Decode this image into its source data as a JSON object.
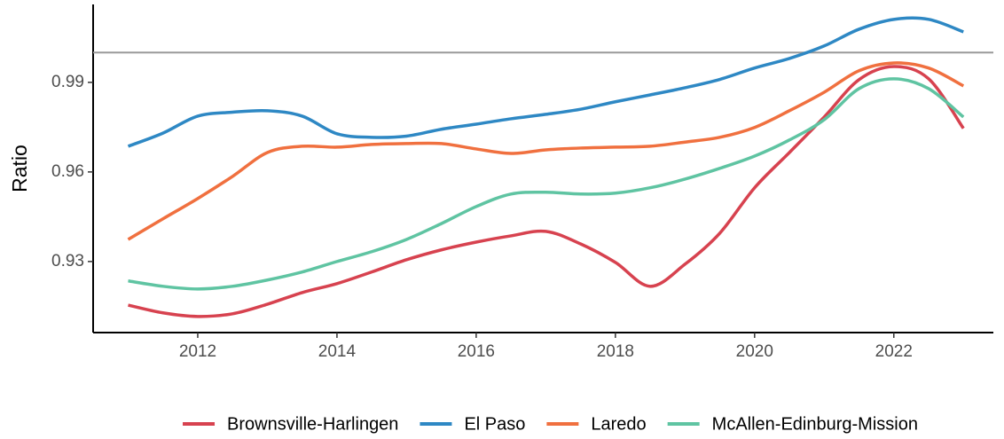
{
  "chart_data": {
    "type": "line",
    "y_label": "Ratio",
    "x": [
      2011,
      2011.5,
      2012,
      2012.5,
      2013,
      2013.5,
      2014,
      2014.5,
      2015,
      2015.5,
      2016,
      2016.5,
      2017,
      2017.5,
      2018,
      2018.5,
      2019,
      2019.5,
      2020,
      2020.5,
      2021,
      2021.5,
      2022,
      2022.5,
      2023
    ],
    "series": [
      {
        "name": "Brownsville-Harlingen",
        "color": "#d7424f",
        "values": [
          0.9154,
          0.9128,
          0.9116,
          0.9125,
          0.9157,
          0.9196,
          0.9226,
          0.9265,
          0.9306,
          0.9339,
          0.9365,
          0.9386,
          0.9401,
          0.9359,
          0.9297,
          0.9217,
          0.9291,
          0.9395,
          0.9547,
          0.9665,
          0.9784,
          0.9909,
          0.9953,
          0.9912,
          0.9746
        ]
      },
      {
        "name": "El Paso",
        "color": "#2e88c4",
        "values": [
          0.9686,
          0.973,
          0.9787,
          0.98,
          0.9805,
          0.9787,
          0.9728,
          0.9716,
          0.972,
          0.9743,
          0.976,
          0.9778,
          0.9793,
          0.981,
          0.9835,
          0.9858,
          0.9882,
          0.991,
          0.9948,
          0.998,
          1.0022,
          1.0078,
          1.0111,
          1.0111,
          1.0069
        ]
      },
      {
        "name": "Laredo",
        "color": "#f0703f",
        "values": [
          0.9374,
          0.9443,
          0.9511,
          0.9585,
          0.9665,
          0.9686,
          0.9683,
          0.9692,
          0.9695,
          0.9695,
          0.9677,
          0.9662,
          0.9674,
          0.968,
          0.9683,
          0.9686,
          0.97,
          0.9716,
          0.9749,
          0.9805,
          0.9867,
          0.9939,
          0.9965,
          0.9948,
          0.9888
        ]
      },
      {
        "name": "McAllen-Edinburg-Mission",
        "color": "#5fc4a2",
        "values": [
          0.9235,
          0.9217,
          0.9208,
          0.9217,
          0.9238,
          0.9265,
          0.93,
          0.9333,
          0.9374,
          0.9427,
          0.9484,
          0.9526,
          0.9532,
          0.9526,
          0.9529,
          0.9547,
          0.9576,
          0.9612,
          0.9653,
          0.9707,
          0.9775,
          0.9879,
          0.9912,
          0.9879,
          0.9784
        ]
      }
    ],
    "reference_line": 1,
    "xlim": [
      2010.497,
      2023.43
    ],
    "ylim": [
      0.9062,
      1.0161
    ],
    "xticks": [
      2012,
      2014,
      2016,
      2018,
      2020,
      2022
    ],
    "yticks": [
      0.93,
      0.96,
      0.99
    ],
    "legend": "bottom"
  }
}
